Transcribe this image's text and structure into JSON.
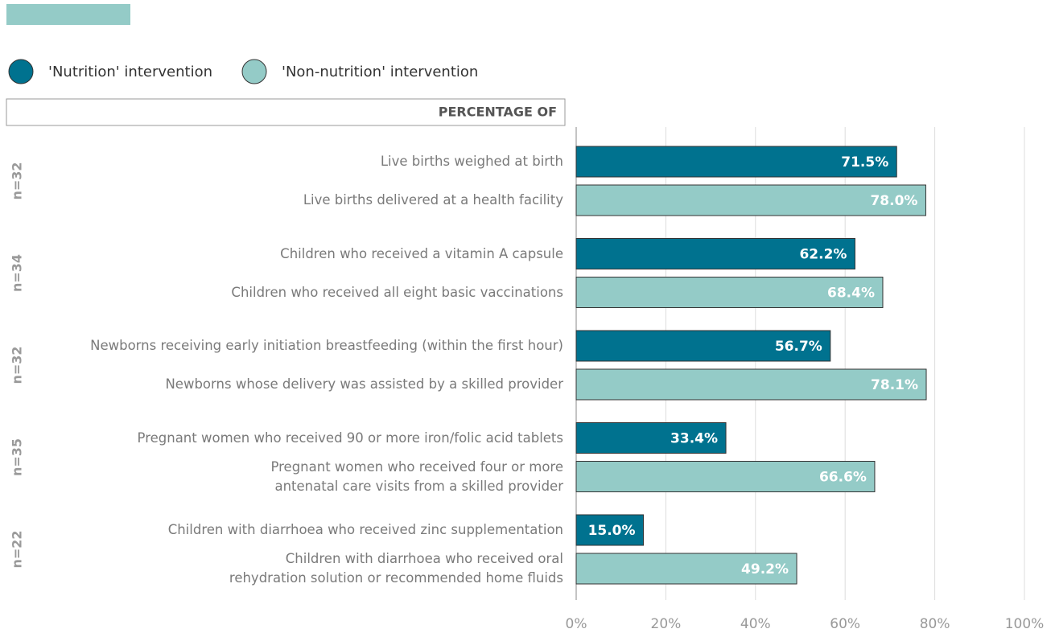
{
  "chart_data": {
    "type": "bar",
    "orientation": "horizontal",
    "header": "PERCENTAGE OF",
    "groups": [
      "n=32",
      "n=34",
      "n=32",
      "n=35",
      "n=22"
    ],
    "series": [
      {
        "name": "'Nutrition' intervention",
        "color": "#00728f",
        "label_color": "#ffffff",
        "categories": [
          "Live births weighed at birth",
          "Children who received a vitamin A capsule",
          "Newborns receiving early initiation breastfeeding (within the first hour)",
          "Pregnant women who received 90 or more iron/folic acid tablets",
          "Children with diarrhoea who received zinc supplementation"
        ],
        "values": [
          71.5,
          62.2,
          56.7,
          33.4,
          15.0
        ],
        "value_labels": [
          "71.5%",
          "62.2%",
          "56.7%",
          "33.4%",
          "15.0%"
        ]
      },
      {
        "name": "'Non-nutrition' intervention",
        "color": "#94cbc7",
        "label_color": "#ffffff",
        "categories": [
          "Live births delivered at a health facility",
          "Children who received all eight basic vaccinations",
          "Newborns whose delivery was assisted by a skilled provider",
          "Pregnant women who received four or more\nantenatal care visits from a skilled provider",
          "Children with diarrhoea who received oral\nrehydration solution or recommended home fluids"
        ],
        "values": [
          78.0,
          68.4,
          78.1,
          66.6,
          49.2
        ],
        "value_labels": [
          "78.0%",
          "68.4%",
          "78.1%",
          "66.6%",
          "49.2%"
        ]
      }
    ],
    "xlim": [
      0,
      100
    ],
    "xticks": [
      {
        "value": 0,
        "label": "0%"
      },
      {
        "value": 20,
        "label": "20%"
      },
      {
        "value": 40,
        "label": "40%"
      },
      {
        "value": 60,
        "label": "60%"
      },
      {
        "value": 80,
        "label": "80%"
      },
      {
        "value": 100,
        "label": "100%"
      }
    ],
    "grid": true
  }
}
